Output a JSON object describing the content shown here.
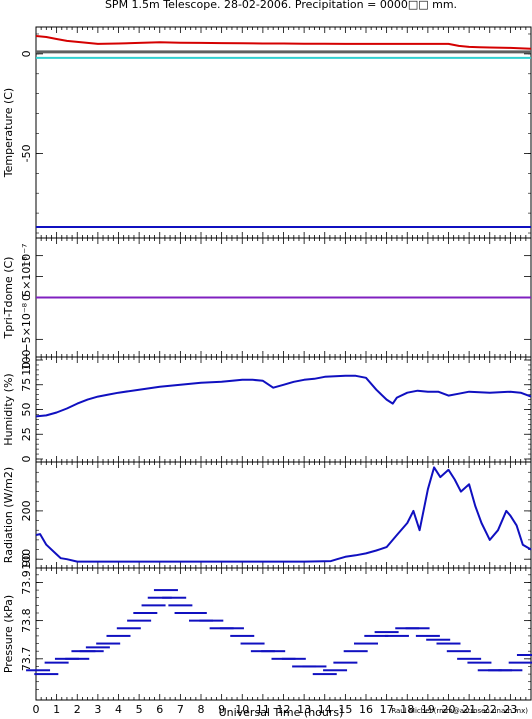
{
  "title": "SPM 1.5m Telescope. 28-02-2006. Precipitation = 0000□□ mm.",
  "credit": "Raul Michel (rmm@astrosen.unam.mx)",
  "colors": {
    "red": "#d40000",
    "gray": "#606060",
    "cyan": "#30d0d0",
    "blue": "#1010c0",
    "purple": "#8020c0",
    "frame": "#000000"
  },
  "chart_data": [
    {
      "type": "line",
      "ylabel": "Temperature (C)",
      "xlim": [
        0,
        24
      ],
      "ylim": [
        -91,
        12
      ],
      "yticks": [
        0,
        -50
      ],
      "series": [
        {
          "color": "red",
          "x": [
            0,
            0.5,
            1,
            1.5,
            2,
            2.5,
            3,
            4,
            5,
            6,
            7,
            8,
            9,
            10,
            11,
            12,
            13,
            14,
            15,
            16,
            17,
            18,
            19,
            20,
            20.5,
            21,
            21.5,
            22,
            23,
            24
          ],
          "y": [
            9,
            8.5,
            7.5,
            6.5,
            6,
            5.5,
            5,
            5.2,
            5.5,
            5.8,
            5.6,
            5.5,
            5.4,
            5.3,
            5.2,
            5.2,
            5.1,
            5.1,
            5.0,
            5.0,
            5.0,
            5.0,
            5.0,
            5.0,
            4.0,
            3.5,
            3.3,
            3.2,
            3.0,
            2.6
          ]
        },
        {
          "color": "gray",
          "x": [
            0,
            24
          ],
          "y": [
            1,
            1
          ]
        },
        {
          "color": "cyan",
          "x": [
            0,
            24
          ],
          "y": [
            -2,
            -2
          ]
        },
        {
          "color": "blue",
          "x": [
            0,
            4,
            8,
            12,
            16,
            20,
            24
          ],
          "y": [
            -87,
            -87,
            -87,
            -87,
            -87,
            -87,
            -87
          ]
        }
      ]
    },
    {
      "type": "line",
      "ylabel": "Tpri-Tdome (C)",
      "xlim": [
        0,
        24
      ],
      "ylim": [
        -1.35e-07,
        1.35e-07
      ],
      "ytick_labels": [
        "10−−5×10⁻⁸",
        "0",
        "5×10⁻⁸",
        "10⁻⁷"
      ],
      "series": [
        {
          "color": "purple",
          "x": [
            0,
            24
          ],
          "y": [
            0,
            0
          ]
        }
      ]
    },
    {
      "type": "line",
      "ylabel": "Humidity (%)",
      "xlim": [
        0,
        24
      ],
      "ylim": [
        0,
        100
      ],
      "yticks": [
        0,
        25,
        50,
        75,
        100
      ],
      "series": [
        {
          "color": "blue",
          "x": [
            0,
            0.5,
            1,
            1.5,
            2,
            2.5,
            3,
            3.5,
            4,
            5,
            6,
            7,
            8,
            9,
            10,
            10.5,
            11,
            11.5,
            12,
            12.5,
            13,
            13.5,
            14,
            15,
            15.5,
            16,
            16.5,
            17,
            17.3,
            17.5,
            18,
            18.5,
            19,
            19.5,
            20,
            20.5,
            21,
            22,
            23,
            23.5,
            24
          ],
          "y": [
            43,
            44,
            47,
            51,
            56,
            60,
            63,
            65,
            67,
            70,
            73,
            75,
            77,
            78,
            80,
            80,
            79,
            72,
            75,
            78,
            80,
            81,
            83,
            84,
            84,
            82,
            70,
            60,
            56,
            62,
            67,
            69,
            68,
            68,
            64,
            66,
            68,
            67,
            68,
            67,
            63
          ]
        }
      ]
    },
    {
      "type": "line",
      "ylabel": "Radiation (W/m2)",
      "xlim": [
        0,
        24
      ],
      "ylim": [
        88,
        295
      ],
      "yticks": [
        100,
        200
      ],
      "ytick_labels": [
        "100",
        "200"
      ],
      "bottom_label": "90",
      "series": [
        {
          "color": "blue",
          "x": [
            0,
            0.2,
            0.5,
            1,
            1.2,
            1.5,
            2,
            3,
            5,
            8,
            11,
            13,
            14.3,
            14.6,
            15,
            15.5,
            16,
            16.5,
            17,
            17.5,
            18,
            18.3,
            18.6,
            19,
            19.3,
            19.6,
            20,
            20.3,
            20.6,
            21,
            21.3,
            21.6,
            22,
            22.4,
            22.8,
            23,
            23.3,
            23.6,
            24
          ],
          "y": [
            150,
            152,
            130,
            110,
            102,
            100,
            95,
            95,
            95,
            95,
            95,
            95,
            96,
            100,
            105,
            108,
            112,
            118,
            125,
            150,
            175,
            200,
            160,
            245,
            290,
            270,
            285,
            265,
            240,
            255,
            210,
            175,
            140,
            160,
            200,
            190,
            170,
            130,
            120
          ]
        }
      ]
    },
    {
      "type": "scatter",
      "ylabel": "Pressure (kPa)",
      "xlim": [
        0,
        24
      ],
      "ylim": [
        73.6,
        73.93
      ],
      "yticks": [
        73.7,
        73.8,
        73.9
      ],
      "ytick_labels": [
        "73.7",
        "73.8",
        "73.9"
      ],
      "series": [
        {
          "color": "blue",
          "x": [
            0.1,
            0.5,
            1,
            1.5,
            2,
            2.3,
            2.7,
            3,
            3.5,
            4,
            4.5,
            5,
            5.3,
            5.7,
            6,
            6.3,
            6.7,
            7,
            7.3,
            7.7,
            8,
            8.5,
            9,
            9.5,
            10,
            10.5,
            11,
            11.5,
            12,
            12.5,
            13,
            13.5,
            14,
            14.5,
            15,
            15.5,
            16,
            16.5,
            17,
            17.5,
            18,
            18.5,
            19,
            19.5,
            20,
            20.5,
            21,
            21.5,
            22,
            22.5,
            23,
            23.5,
            23.9
          ],
          "y": [
            73.67,
            73.66,
            73.69,
            73.7,
            73.7,
            73.72,
            73.72,
            73.73,
            73.74,
            73.76,
            73.78,
            73.8,
            73.82,
            73.84,
            73.86,
            73.88,
            73.86,
            73.84,
            73.82,
            73.82,
            73.8,
            73.8,
            73.78,
            73.78,
            73.76,
            73.74,
            73.72,
            73.72,
            73.7,
            73.7,
            73.68,
            73.68,
            73.66,
            73.67,
            73.69,
            73.72,
            73.74,
            73.76,
            73.77,
            73.76,
            73.78,
            73.78,
            73.76,
            73.75,
            73.74,
            73.72,
            73.7,
            73.69,
            73.67,
            73.67,
            73.67,
            73.69,
            73.71
          ]
        }
      ]
    }
  ],
  "x_axis": {
    "label": "Universal Time (hours)",
    "tick_labels": [
      "0",
      "1",
      "2",
      "3",
      "4",
      "5",
      "6",
      "7",
      "8",
      "9",
      "10",
      "11",
      "12",
      "13",
      "14",
      "15",
      "16",
      "17",
      "18",
      "19",
      "20",
      "21",
      "22",
      "23"
    ]
  }
}
